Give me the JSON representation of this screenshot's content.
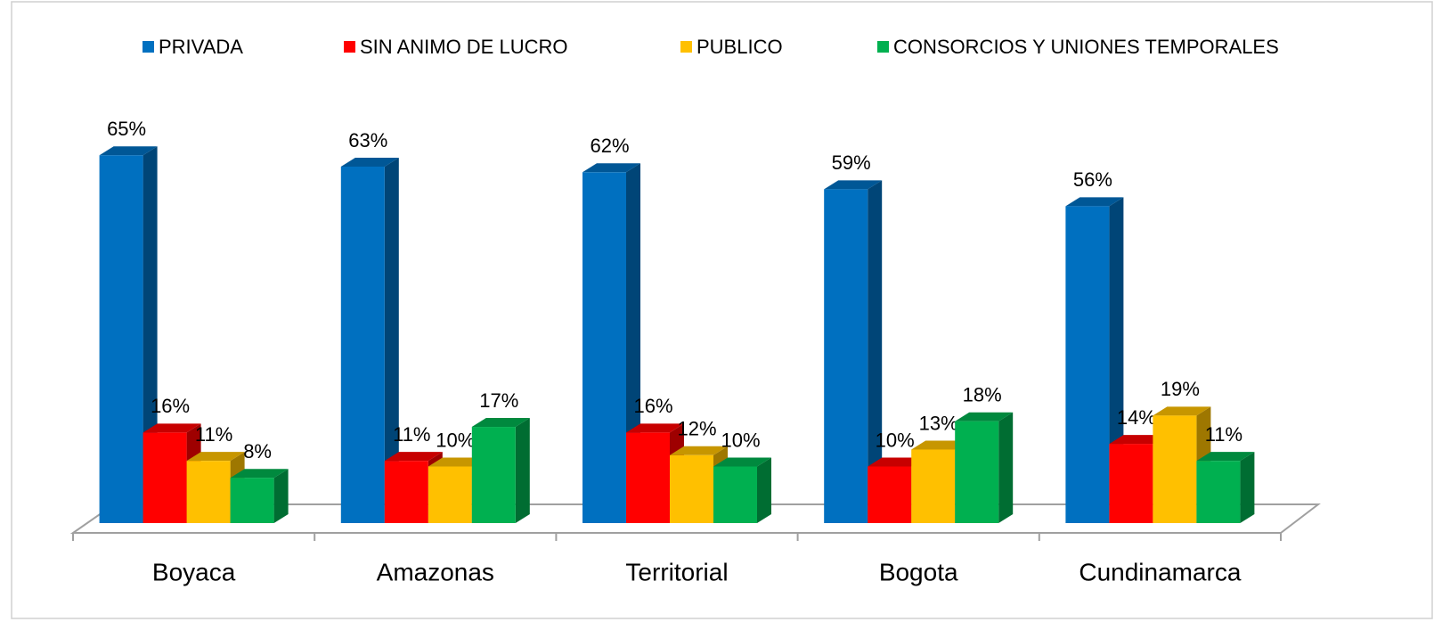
{
  "chart_data": {
    "type": "bar3d",
    "categories": [
      "Boyaca",
      "Amazonas",
      "Territorial",
      "Bogota",
      "Cundinamarca"
    ],
    "series": [
      {
        "name": "PRIVADA",
        "color": "#0070c0",
        "values": [
          65,
          63,
          62,
          59,
          56
        ],
        "value_labels": [
          "65%",
          "63%",
          "62%",
          "59%",
          "56%"
        ]
      },
      {
        "name": "SIN ANIMO DE LUCRO",
        "color": "#ff0000",
        "values": [
          16,
          11,
          16,
          10,
          14
        ],
        "value_labels": [
          "16%",
          "11%",
          "16%",
          "10%",
          "14%"
        ]
      },
      {
        "name": "PUBLICO",
        "color": "#ffc000",
        "values": [
          11,
          10,
          12,
          13,
          19
        ],
        "value_labels": [
          "11%",
          "10%",
          "12%",
          "13%",
          "19%"
        ]
      },
      {
        "name": "CONSORCIOS Y UNIONES TEMPORALES",
        "color": "#00b050",
        "values": [
          8,
          17,
          10,
          18,
          11
        ],
        "value_labels": [
          "8%",
          "17%",
          "10%",
          "18%",
          "11%"
        ]
      }
    ],
    "legend": "top"
  }
}
